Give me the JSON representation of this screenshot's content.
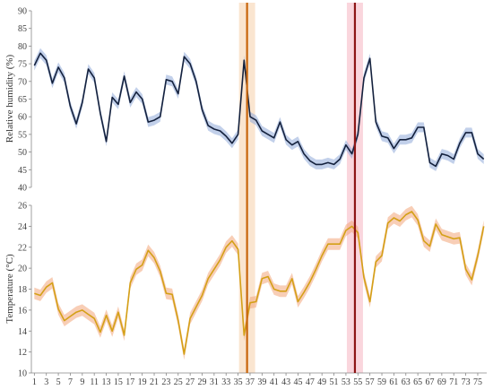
{
  "chart_data": [
    {
      "type": "line",
      "ylabel": "Relative humidity (%)",
      "ylim": [
        40,
        90
      ],
      "yticks": [
        40,
        45,
        50,
        55,
        60,
        65,
        70,
        75,
        80,
        85,
        90
      ],
      "grid": false,
      "series": [
        {
          "color": "#14213d",
          "band_color": "#8fa9d9",
          "values": [
            74.5,
            78,
            76,
            69.5,
            74,
            71,
            63,
            58,
            64,
            73.5,
            71,
            61,
            53,
            65.5,
            63.5,
            71.5,
            64,
            67,
            65,
            58.5,
            59,
            60,
            70.5,
            70,
            66.5,
            77,
            75,
            70,
            62,
            57.5,
            56.5,
            56,
            54.5,
            52.5,
            55,
            76,
            60,
            59,
            56,
            55,
            54,
            58.5,
            53.5,
            52,
            53,
            49.5,
            47.5,
            46.5,
            46.5,
            47,
            46.5,
            48,
            52,
            49.5,
            55,
            71,
            76.5,
            58.5,
            54.5,
            54,
            51,
            53.5,
            53.5,
            54,
            57,
            57,
            47,
            46,
            49.5,
            49,
            48,
            52.5,
            55.5,
            55.5,
            49.5,
            48
          ]
        }
      ]
    },
    {
      "type": "line",
      "xlabel": "",
      "ylabel": "Temperature (°C)",
      "ylim": [
        10,
        26
      ],
      "yticks": [
        10,
        12,
        14,
        16,
        18,
        20,
        22,
        24,
        26
      ],
      "categories": [
        1,
        2,
        3,
        4,
        5,
        6,
        7,
        8,
        9,
        10,
        11,
        12,
        13,
        14,
        15,
        16,
        17,
        18,
        19,
        20,
        21,
        22,
        23,
        24,
        25,
        26,
        27,
        28,
        29,
        30,
        31,
        32,
        33,
        34,
        35,
        36,
        37,
        38,
        39,
        40,
        41,
        42,
        43,
        44,
        45,
        46,
        47,
        48,
        49,
        50,
        51,
        52,
        53,
        54,
        55,
        56,
        57,
        58,
        59,
        60,
        61,
        62,
        63,
        64,
        65,
        66,
        67,
        68,
        69,
        70,
        71,
        72,
        73,
        74,
        75,
        76
      ],
      "xtick_labels": [
        "1",
        "3",
        "5",
        "7",
        "9",
        "11",
        "13",
        "15",
        "17",
        "19",
        "21",
        "23",
        "25",
        "27",
        "29",
        "31",
        "33",
        "35",
        "37",
        "39",
        "41",
        "43",
        "45",
        "47",
        "49",
        "51",
        "53",
        "55",
        "57",
        "59",
        "61",
        "63",
        "65",
        "67",
        "69",
        "71",
        "73",
        "75"
      ],
      "grid": false,
      "series": [
        {
          "color": "#d4a017",
          "band_color": "#f2a67a",
          "values": [
            17.6,
            17.4,
            18.2,
            18.6,
            16.1,
            15,
            15.4,
            15.8,
            16,
            15.6,
            15.2,
            13.9,
            15.5,
            14,
            15.8,
            13.6,
            18.6,
            19.9,
            20.3,
            21.7,
            21,
            19.7,
            17.6,
            17.5,
            15,
            11.8,
            15.2,
            16.3,
            17.4,
            19,
            19.9,
            20.8,
            22,
            22.6,
            21.8,
            13.6,
            16.7,
            16.8,
            19,
            19.2,
            18,
            17.8,
            17.8,
            19,
            16.8,
            17.7,
            18.7,
            19.9,
            21.2,
            22.3,
            22.3,
            22.3,
            23.6,
            24,
            23.4,
            19.1,
            16.8,
            20.6,
            21.2,
            24.3,
            24.8,
            24.5,
            25.1,
            25.4,
            24.6,
            22.6,
            22.1,
            24.2,
            23.2,
            23,
            22.8,
            22.9,
            19.9,
            18.9,
            21.2,
            24
          ]
        }
      ]
    }
  ],
  "events": [
    {
      "x": 36.5,
      "line_color": "#c8650c",
      "band_color": "#f8dcc0"
    },
    {
      "x": 54.5,
      "line_color": "#8e1616",
      "band_color": "#f8c8d2"
    }
  ]
}
